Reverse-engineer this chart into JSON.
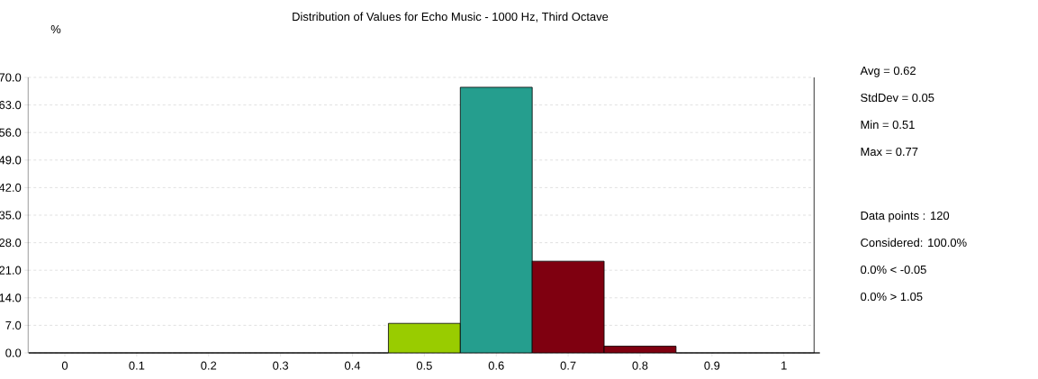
{
  "chart_data": {
    "type": "bar",
    "title": "Distribution of Values for Echo Music - 1000 Hz, Third Octave",
    "ylabel": "%",
    "categories": [
      "0",
      "0.1",
      "0.2",
      "0.3",
      "0.4",
      "0.5",
      "0.6",
      "0.7",
      "0.8",
      "0.9",
      "1"
    ],
    "values": [
      0,
      0,
      0,
      0,
      0,
      7.5,
      67.5,
      23.3,
      1.7,
      0,
      0
    ],
    "colors": [
      "#808080",
      "#808080",
      "#808080",
      "#808080",
      "#808080",
      "#99cc00",
      "#259e8e",
      "#7f0010",
      "#7f0010",
      "#808080",
      "#808080"
    ],
    "ylim": [
      0,
      70
    ],
    "yticks": [
      {
        "value": 0,
        "label": "0.0"
      },
      {
        "value": 7,
        "label": "7.0"
      },
      {
        "value": 14,
        "label": "14.0"
      },
      {
        "value": 21,
        "label": "21.0"
      },
      {
        "value": 28,
        "label": "28.0"
      },
      {
        "value": 35,
        "label": "35.0"
      },
      {
        "value": 42,
        "label": "42.0"
      },
      {
        "value": 49,
        "label": "49.0"
      },
      {
        "value": 56,
        "label": "56.0"
      },
      {
        "value": 63,
        "label": "63.0"
      },
      {
        "value": 70,
        "label": "70.0"
      }
    ],
    "grid": "y",
    "annotations": [
      "Avg = 0.62",
      "StdDev = 0.05",
      "Min = 0.51",
      "Max = 0.77",
      "Data points : 120",
      "Considered: 100.0%",
      "0.0%  < -0.05",
      "0.0%  > 1.05"
    ]
  }
}
